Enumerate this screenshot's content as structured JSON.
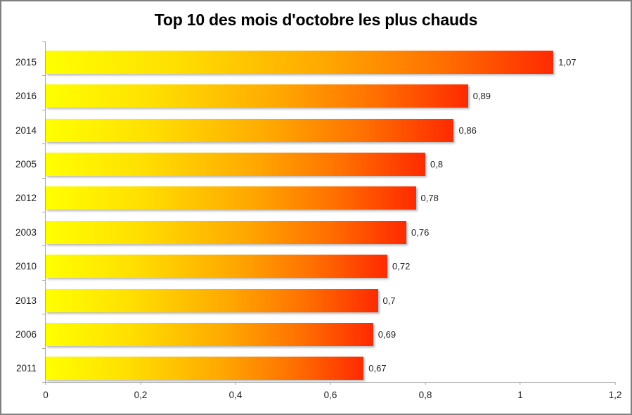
{
  "chart_data": {
    "type": "bar",
    "orientation": "horizontal",
    "title": "Top 10 des mois d'octobre les plus chauds",
    "categories": [
      "2015",
      "2016",
      "2014",
      "2005",
      "2012",
      "2003",
      "2010",
      "2013",
      "2006",
      "2011"
    ],
    "values": [
      1.07,
      0.89,
      0.86,
      0.8,
      0.78,
      0.76,
      0.72,
      0.7,
      0.69,
      0.67
    ],
    "value_labels": [
      "1,07",
      "0,89",
      "0,86",
      "0,8",
      "0,78",
      "0,76",
      "0,72",
      "0,7",
      "0,69",
      "0,67"
    ],
    "xlabel": "",
    "ylabel": "",
    "xlim": [
      0,
      1.2
    ],
    "x_tick_values": [
      0,
      0.2,
      0.4,
      0.6,
      0.8,
      1,
      1.2
    ],
    "x_tick_labels": [
      "0",
      "0,2",
      "0,4",
      "0,6",
      "0,8",
      "1",
      "1,2"
    ],
    "grid": false,
    "legend": null,
    "colors": {
      "bar_gradient": [
        "#ffff00",
        "#ffe000",
        "#ffa800",
        "#ff7000",
        "#ff2a00"
      ],
      "axis_line": "#a6a6a6",
      "text": "#1f1f1f",
      "frame_border": "#7f7f7f",
      "background": "#ffffff"
    }
  }
}
